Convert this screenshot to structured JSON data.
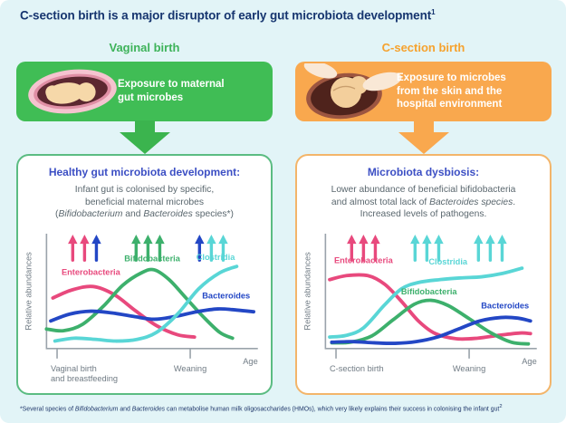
{
  "title": {
    "text": "C-section birth is a major disruptor of early gut microbiota development",
    "sup": "1"
  },
  "colors": {
    "background": "#e2f4f7",
    "title_navy": "#16356f",
    "body_text": "#5a676e",
    "panel_title_blue": "#3c4fc4",
    "pink": "#e8497d",
    "green": "#3db06c",
    "cyan": "#59d6d6",
    "blue": "#2347c5",
    "axis": "#9aa3ab",
    "tick_text": "#707b84"
  },
  "icons": {
    "left_banner": "fetus-in-birth-canal-illustration",
    "right_banner": "c-section-delivery-illustration",
    "flow": "down-arrow-icon"
  },
  "columns": [
    {
      "heading": "Vaginal birth",
      "banner_text_lines": [
        "Exposure to maternal",
        "gut microbes"
      ],
      "panel_title": "Healthy gut microbiota development:",
      "description_lines": [
        [
          {
            "t": "Infant gut is colonised by specific,"
          }
        ],
        [
          {
            "t": "beneficial maternal microbes"
          }
        ],
        [
          {
            "t": "("
          },
          {
            "t": "Bifidobacterium",
            "i": true
          },
          {
            "t": " and "
          },
          {
            "t": "Bacteroides",
            "i": true
          },
          {
            "t": " species*)"
          }
        ]
      ],
      "theme": {
        "heading": "#3eb35a",
        "banner": "#40bd55",
        "arrow": "#3bb44e",
        "panel_border": "#5bbc82",
        "panel_title": "#3c4fc4"
      }
    },
    {
      "heading": "C-section birth",
      "banner_text_lines": [
        "Exposure to microbes",
        "from the skin and the",
        "hospital environment"
      ],
      "panel_title": "Microbiota dysbiosis:",
      "description_lines": [
        [
          {
            "t": "Lower abundance of beneficial bifidobacteria"
          }
        ],
        [
          {
            "t": "and almost total lack of "
          },
          {
            "t": "Bacteroides species",
            "i": true
          },
          {
            "t": "."
          }
        ],
        [
          {
            "t": "Increased levels of pathogens."
          }
        ]
      ],
      "theme": {
        "heading": "#f6a22e",
        "banner": "#f9a84e",
        "arrow": "#f9a84e",
        "panel_border": "#f3b56a",
        "panel_title": "#3c4fc4"
      }
    }
  ],
  "chart_data": [
    {
      "type": "line",
      "title": "Healthy gut microbiota development",
      "xlabel": "Age",
      "ylabel": "Relative abundances",
      "ylim": [
        0,
        1
      ],
      "grid": false,
      "x_ticks": [
        {
          "pos": 0.05,
          "anchor": "start",
          "label": [
            "Vaginal birth",
            "and breastfeeding"
          ]
        },
        {
          "pos": 0.68,
          "anchor": "middle",
          "label": [
            "Weaning"
          ]
        }
      ],
      "arrow_groups": [
        {
          "x": 0.18,
          "colors": [
            "pink",
            "pink",
            "blue"
          ]
        },
        {
          "x": 0.48,
          "colors": [
            "green",
            "green",
            "green"
          ]
        },
        {
          "x": 0.78,
          "colors": [
            "blue",
            "cyan",
            "cyan"
          ]
        }
      ],
      "series_labels": [
        {
          "text": "Enterobacteria",
          "color": "pink",
          "x": 0.21,
          "y": 0.64
        },
        {
          "text": "Bifidobacteria",
          "color": "green",
          "x": 0.5,
          "y": 0.76
        },
        {
          "text": "Clostridia",
          "color": "cyan",
          "x": 0.8,
          "y": 0.77
        },
        {
          "text": "Bacteroides",
          "color": "blue",
          "x": 0.85,
          "y": 0.435
        }
      ],
      "series": [
        {
          "name": "Enterobacteria",
          "color": "pink",
          "points": [
            [
              0.03,
              0.44
            ],
            [
              0.12,
              0.51
            ],
            [
              0.22,
              0.54
            ],
            [
              0.32,
              0.47
            ],
            [
              0.42,
              0.33
            ],
            [
              0.52,
              0.2
            ],
            [
              0.62,
              0.12
            ],
            [
              0.7,
              0.1
            ]
          ]
        },
        {
          "name": "Bifidobacteria",
          "color": "green",
          "points": [
            [
              0.0,
              0.17
            ],
            [
              0.08,
              0.155
            ],
            [
              0.17,
              0.21
            ],
            [
              0.27,
              0.37
            ],
            [
              0.36,
              0.55
            ],
            [
              0.45,
              0.66
            ],
            [
              0.51,
              0.685
            ],
            [
              0.58,
              0.6
            ],
            [
              0.66,
              0.44
            ],
            [
              0.74,
              0.28
            ],
            [
              0.82,
              0.14
            ],
            [
              0.88,
              0.09
            ]
          ]
        },
        {
          "name": "Bacteroides",
          "color": "blue",
          "points": [
            [
              0.02,
              0.24
            ],
            [
              0.11,
              0.3
            ],
            [
              0.21,
              0.325
            ],
            [
              0.31,
              0.31
            ],
            [
              0.41,
              0.28
            ],
            [
              0.51,
              0.255
            ],
            [
              0.61,
              0.28
            ],
            [
              0.71,
              0.32
            ],
            [
              0.81,
              0.345
            ],
            [
              0.9,
              0.335
            ],
            [
              0.98,
              0.32
            ]
          ]
        },
        {
          "name": "Clostridia",
          "color": "cyan",
          "points": [
            [
              0.04,
              0.065
            ],
            [
              0.13,
              0.09
            ],
            [
              0.23,
              0.08
            ],
            [
              0.33,
              0.065
            ],
            [
              0.43,
              0.08
            ],
            [
              0.52,
              0.14
            ],
            [
              0.62,
              0.3
            ],
            [
              0.72,
              0.52
            ],
            [
              0.82,
              0.66
            ],
            [
              0.9,
              0.715
            ]
          ]
        }
      ]
    },
    {
      "type": "line",
      "title": "Microbiota dysbiosis",
      "xlabel": "Age",
      "ylabel": "Relative abundances",
      "ylim": [
        0,
        1
      ],
      "grid": false,
      "x_ticks": [
        {
          "pos": 0.05,
          "anchor": "start",
          "label": [
            "C-section birth"
          ]
        },
        {
          "pos": 0.68,
          "anchor": "middle",
          "label": [
            "Weaning"
          ]
        }
      ],
      "arrow_groups": [
        {
          "x": 0.18,
          "colors": [
            "pink",
            "pink",
            "pink"
          ]
        },
        {
          "x": 0.48,
          "colors": [
            "cyan",
            "cyan",
            "cyan"
          ]
        },
        {
          "x": 0.78,
          "colors": [
            "cyan",
            "cyan",
            "cyan"
          ]
        }
      ],
      "series_labels": [
        {
          "text": "Enterobacteria",
          "color": "pink",
          "x": 0.18,
          "y": 0.745
        },
        {
          "text": "Clostridia",
          "color": "cyan",
          "x": 0.58,
          "y": 0.73
        },
        {
          "text": "Bifidobacteria",
          "color": "green",
          "x": 0.49,
          "y": 0.47
        },
        {
          "text": "Bacteroides",
          "color": "blue",
          "x": 0.85,
          "y": 0.35
        }
      ],
      "series": [
        {
          "name": "Enterobacteria",
          "color": "pink",
          "points": [
            [
              0.02,
              0.6
            ],
            [
              0.1,
              0.635
            ],
            [
              0.2,
              0.635
            ],
            [
              0.28,
              0.56
            ],
            [
              0.36,
              0.41
            ],
            [
              0.44,
              0.24
            ],
            [
              0.52,
              0.13
            ],
            [
              0.62,
              0.085
            ],
            [
              0.72,
              0.09
            ],
            [
              0.82,
              0.115
            ],
            [
              0.92,
              0.135
            ],
            [
              0.97,
              0.13
            ]
          ]
        },
        {
          "name": "Clostridia",
          "color": "cyan",
          "points": [
            [
              0.02,
              0.1
            ],
            [
              0.1,
              0.115
            ],
            [
              0.18,
              0.18
            ],
            [
              0.28,
              0.38
            ],
            [
              0.36,
              0.52
            ],
            [
              0.44,
              0.575
            ],
            [
              0.54,
              0.6
            ],
            [
              0.64,
              0.615
            ],
            [
              0.74,
              0.625
            ],
            [
              0.84,
              0.655
            ],
            [
              0.93,
              0.7
            ]
          ]
        },
        {
          "name": "Bifidobacteria",
          "color": "green",
          "points": [
            [
              0.03,
              0.05
            ],
            [
              0.12,
              0.055
            ],
            [
              0.22,
              0.11
            ],
            [
              0.32,
              0.25
            ],
            [
              0.42,
              0.385
            ],
            [
              0.5,
              0.42
            ],
            [
              0.58,
              0.375
            ],
            [
              0.68,
              0.26
            ],
            [
              0.78,
              0.14
            ],
            [
              0.88,
              0.055
            ],
            [
              0.96,
              0.04
            ]
          ]
        },
        {
          "name": "Bacteroides",
          "color": "blue",
          "points": [
            [
              0.03,
              0.055
            ],
            [
              0.13,
              0.06
            ],
            [
              0.23,
              0.05
            ],
            [
              0.33,
              0.045
            ],
            [
              0.43,
              0.06
            ],
            [
              0.53,
              0.1
            ],
            [
              0.63,
              0.17
            ],
            [
              0.73,
              0.24
            ],
            [
              0.83,
              0.27
            ],
            [
              0.91,
              0.265
            ],
            [
              0.97,
              0.24
            ]
          ]
        }
      ]
    }
  ],
  "footnote": {
    "segments": [
      {
        "t": "*Several species of "
      },
      {
        "t": "Bifidobacterium",
        "i": true
      },
      {
        "t": " and "
      },
      {
        "t": "Bacteroides",
        "i": true
      },
      {
        "t": " can metabolise human milk oligosaccharides (HMOs), which very likely explains their success in colonising the infant gut"
      },
      {
        "t": "2",
        "sup": true
      }
    ]
  }
}
